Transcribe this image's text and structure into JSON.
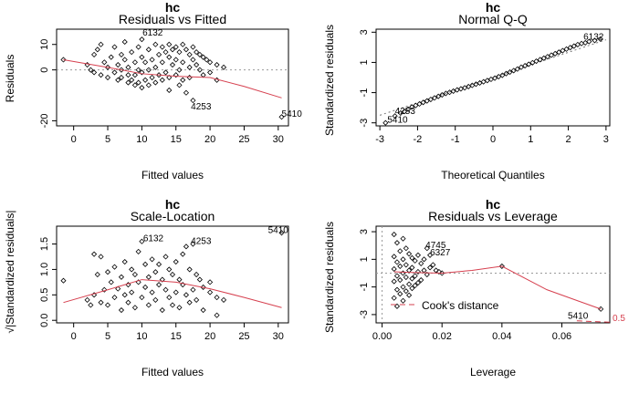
{
  "chart_data": [
    {
      "type": "scatter",
      "panel": "rvf",
      "model_label": "hc",
      "title": "Residuals vs Fitted",
      "xlabel": "Fitted values",
      "ylabel": "Residuals",
      "xlim": [
        -2.5,
        31.5
      ],
      "ylim": [
        -22,
        16
      ],
      "xticks": [
        "0",
        "5",
        "10",
        "15",
        "20",
        "25",
        "30"
      ],
      "yticks": [
        "-20",
        "0",
        "10"
      ],
      "reference_y": 0,
      "smooth": [
        [
          -1.5,
          4
        ],
        [
          5,
          1
        ],
        [
          10,
          -1.5
        ],
        [
          15,
          -2.5
        ],
        [
          20,
          -3
        ],
        [
          25,
          -6.5
        ],
        [
          30.5,
          -11
        ]
      ],
      "annotations": [
        {
          "text": "6132",
          "x": 10.1,
          "y": 13.5
        },
        {
          "text": "4253",
          "x": 17.2,
          "y": -15.5
        },
        {
          "text": "5410",
          "x": 30.5,
          "y": -18.5
        }
      ],
      "points": [
        [
          -1.5,
          4
        ],
        [
          2,
          2
        ],
        [
          2.5,
          0
        ],
        [
          3,
          6
        ],
        [
          3,
          -1
        ],
        [
          3.5,
          8
        ],
        [
          4,
          10
        ],
        [
          4,
          -2
        ],
        [
          4.5,
          3
        ],
        [
          5,
          1
        ],
        [
          5,
          -3
        ],
        [
          5.5,
          5
        ],
        [
          6,
          9
        ],
        [
          6,
          -1
        ],
        [
          6.5,
          2
        ],
        [
          6.5,
          -4
        ],
        [
          7,
          6
        ],
        [
          7,
          0
        ],
        [
          7,
          -3
        ],
        [
          7.5,
          11
        ],
        [
          7.5,
          4
        ],
        [
          8,
          -2
        ],
        [
          8,
          1
        ],
        [
          8,
          -5
        ],
        [
          8.5,
          7
        ],
        [
          8.5,
          -4
        ],
        [
          9,
          3
        ],
        [
          9,
          -2
        ],
        [
          9,
          -6
        ],
        [
          9.5,
          9
        ],
        [
          9.5,
          0
        ],
        [
          9.5,
          -5
        ],
        [
          10,
          12
        ],
        [
          10,
          5
        ],
        [
          10,
          -1
        ],
        [
          10,
          -7
        ],
        [
          10.5,
          3
        ],
        [
          10.5,
          -4
        ],
        [
          11,
          8
        ],
        [
          11,
          0
        ],
        [
          11,
          -6
        ],
        [
          11.5,
          4
        ],
        [
          11.5,
          -3
        ],
        [
          12,
          10
        ],
        [
          12,
          1
        ],
        [
          12,
          -5
        ],
        [
          12.5,
          6
        ],
        [
          12.5,
          -2
        ],
        [
          13,
          9
        ],
        [
          13,
          3
        ],
        [
          13,
          -4
        ],
        [
          13.5,
          7
        ],
        [
          13.5,
          -1
        ],
        [
          14,
          10
        ],
        [
          14,
          5
        ],
        [
          14,
          -3
        ],
        [
          14,
          -8
        ],
        [
          14.5,
          8
        ],
        [
          14.5,
          2
        ],
        [
          15,
          9
        ],
        [
          15,
          4
        ],
        [
          15,
          -2
        ],
        [
          15.5,
          7
        ],
        [
          15.5,
          0
        ],
        [
          15.5,
          -6
        ],
        [
          16,
          10
        ],
        [
          16,
          3
        ],
        [
          16,
          -4
        ],
        [
          16.5,
          8
        ],
        [
          16.5,
          -9
        ],
        [
          17,
          6
        ],
        [
          17,
          1
        ],
        [
          17,
          -3
        ],
        [
          17.5,
          9
        ],
        [
          17.5,
          4
        ],
        [
          17.5,
          -12
        ],
        [
          18,
          7
        ],
        [
          18,
          2
        ],
        [
          18.5,
          6
        ],
        [
          18.5,
          0
        ],
        [
          19,
          5
        ],
        [
          19,
          -2
        ],
        [
          19.5,
          4
        ],
        [
          20,
          3
        ],
        [
          20,
          -1
        ],
        [
          21,
          2
        ],
        [
          21,
          -4
        ],
        [
          22,
          1
        ],
        [
          30.5,
          -18.5
        ]
      ]
    },
    {
      "type": "scatter",
      "panel": "qq",
      "model_label": "hc",
      "title": "Normal Q-Q",
      "xlabel": "Theoretical Quantiles",
      "ylabel": "Standardized residuals",
      "xlim": [
        -3.1,
        3.1
      ],
      "ylim": [
        -3.2,
        3.2
      ],
      "xticks": [
        "-3",
        "-2",
        "-1",
        "0",
        "1",
        "2",
        "3"
      ],
      "yticks": [
        "-3",
        "-1",
        "1",
        "3"
      ],
      "reference_line": [
        [
          -3,
          -2.5
        ],
        [
          3,
          2.5
        ]
      ],
      "annotations": [
        {
          "text": "6132",
          "x": 2.4,
          "y": 2.5
        },
        {
          "text": "4253",
          "x": -2.6,
          "y": -2.4
        },
        {
          "text": "5410",
          "x": -2.8,
          "y": -3
        }
      ],
      "points": [
        [
          -2.85,
          -3.0
        ],
        [
          -2.6,
          -2.55
        ],
        [
          -2.45,
          -2.35
        ],
        [
          -2.35,
          -2.25
        ],
        [
          -2.25,
          -2.1
        ],
        [
          -2.15,
          -1.95
        ],
        [
          -2.05,
          -1.85
        ],
        [
          -1.95,
          -1.75
        ],
        [
          -1.85,
          -1.65
        ],
        [
          -1.75,
          -1.55
        ],
        [
          -1.65,
          -1.45
        ],
        [
          -1.55,
          -1.35
        ],
        [
          -1.45,
          -1.25
        ],
        [
          -1.35,
          -1.15
        ],
        [
          -1.25,
          -1.05
        ],
        [
          -1.15,
          -0.98
        ],
        [
          -1.05,
          -0.9
        ],
        [
          -0.95,
          -0.82
        ],
        [
          -0.85,
          -0.75
        ],
        [
          -0.75,
          -0.68
        ],
        [
          -0.65,
          -0.6
        ],
        [
          -0.55,
          -0.52
        ],
        [
          -0.45,
          -0.44
        ],
        [
          -0.35,
          -0.36
        ],
        [
          -0.25,
          -0.28
        ],
        [
          -0.15,
          -0.2
        ],
        [
          -0.05,
          -0.12
        ],
        [
          0.05,
          -0.04
        ],
        [
          0.15,
          0.06
        ],
        [
          0.25,
          0.15
        ],
        [
          0.35,
          0.26
        ],
        [
          0.45,
          0.36
        ],
        [
          0.55,
          0.46
        ],
        [
          0.65,
          0.56
        ],
        [
          0.75,
          0.68
        ],
        [
          0.85,
          0.78
        ],
        [
          0.95,
          0.88
        ],
        [
          1.05,
          0.98
        ],
        [
          1.15,
          1.08
        ],
        [
          1.25,
          1.18
        ],
        [
          1.35,
          1.28
        ],
        [
          1.45,
          1.38
        ],
        [
          1.55,
          1.48
        ],
        [
          1.65,
          1.58
        ],
        [
          1.75,
          1.68
        ],
        [
          1.85,
          1.78
        ],
        [
          1.95,
          1.88
        ],
        [
          2.05,
          1.98
        ],
        [
          2.15,
          2.08
        ],
        [
          2.25,
          2.18
        ],
        [
          2.35,
          2.25
        ],
        [
          2.45,
          2.3
        ],
        [
          2.55,
          2.38
        ],
        [
          2.7,
          2.45
        ],
        [
          2.85,
          2.55
        ]
      ]
    },
    {
      "type": "scatter",
      "panel": "scale",
      "model_label": "hc",
      "title": "Scale-Location",
      "xlabel": "Fitted values",
      "ylabel": "√|Standardized residuals|",
      "xlim": [
        -2.5,
        31.5
      ],
      "ylim": [
        -0.05,
        1.85
      ],
      "xticks": [
        "0",
        "5",
        "10",
        "15",
        "20",
        "25",
        "30"
      ],
      "yticks": [
        "0.0",
        "0.5",
        "1.0",
        "1.5"
      ],
      "smooth": [
        [
          -1.5,
          0.35
        ],
        [
          5,
          0.6
        ],
        [
          10,
          0.8
        ],
        [
          15,
          0.75
        ],
        [
          20,
          0.62
        ],
        [
          25,
          0.45
        ],
        [
          30.5,
          0.25
        ]
      ],
      "annotations": [
        {
          "text": "6132",
          "x": 10.2,
          "y": 1.55
        },
        {
          "text": "4253",
          "x": 17.2,
          "y": 1.5
        },
        {
          "text": "5410",
          "x": 28.5,
          "y": 1.72
        }
      ],
      "points": [
        [
          -1.5,
          0.78
        ],
        [
          2,
          0.4
        ],
        [
          2.5,
          0.3
        ],
        [
          3,
          0.5
        ],
        [
          3,
          1.3
        ],
        [
          3.5,
          0.9
        ],
        [
          4,
          0.35
        ],
        [
          4,
          1.25
        ],
        [
          4.5,
          0.6
        ],
        [
          5,
          0.3
        ],
        [
          5,
          0.95
        ],
        [
          5.5,
          0.75
        ],
        [
          6,
          0.45
        ],
        [
          6,
          1.05
        ],
        [
          6.5,
          0.62
        ],
        [
          7,
          0.2
        ],
        [
          7,
          0.85
        ],
        [
          7.5,
          1.15
        ],
        [
          7.5,
          0.5
        ],
        [
          8,
          0.7
        ],
        [
          8,
          0.35
        ],
        [
          8.5,
          1.0
        ],
        [
          8.5,
          0.55
        ],
        [
          9,
          0.9
        ],
        [
          9,
          0.25
        ],
        [
          9.5,
          1.35
        ],
        [
          9.5,
          0.75
        ],
        [
          10,
          1.55
        ],
        [
          10,
          0.45
        ],
        [
          10.5,
          1.1
        ],
        [
          10.5,
          0.65
        ],
        [
          11,
          0.85
        ],
        [
          11,
          0.3
        ],
        [
          11.5,
          1.2
        ],
        [
          11.5,
          0.55
        ],
        [
          12,
          0.95
        ],
        [
          12,
          0.4
        ],
        [
          12.5,
          1.1
        ],
        [
          12.5,
          0.7
        ],
        [
          13,
          0.8
        ],
        [
          13,
          0.2
        ],
        [
          13.5,
          1.25
        ],
        [
          13.5,
          0.6
        ],
        [
          14,
          1.0
        ],
        [
          14,
          0.45
        ],
        [
          14.5,
          0.9
        ],
        [
          14.5,
          0.3
        ],
        [
          15,
          1.15
        ],
        [
          15,
          0.55
        ],
        [
          15.5,
          0.8
        ],
        [
          15.5,
          0.25
        ],
        [
          16,
          1.3
        ],
        [
          16,
          0.7
        ],
        [
          16.5,
          1.45
        ],
        [
          16.5,
          0.5
        ],
        [
          17,
          1.0
        ],
        [
          17,
          0.35
        ],
        [
          17.5,
          1.5
        ],
        [
          17.5,
          0.6
        ],
        [
          18,
          0.9
        ],
        [
          18,
          0.4
        ],
        [
          18.5,
          0.8
        ],
        [
          19,
          0.65
        ],
        [
          19,
          0.2
        ],
        [
          20,
          0.55
        ],
        [
          20,
          0.75
        ],
        [
          21,
          0.45
        ],
        [
          21,
          0.1
        ],
        [
          22,
          0.4
        ],
        [
          30.5,
          1.72
        ]
      ]
    },
    {
      "type": "scatter",
      "panel": "leverage",
      "model_label": "hc",
      "title": "Residuals vs Leverage",
      "xlabel": "Leverage",
      "ylabel": "Standardized residuals",
      "xlim": [
        -0.002,
        0.076
      ],
      "ylim": [
        -3.6,
        3.4
      ],
      "xticks": [
        "0.00",
        "0.02",
        "0.04",
        "0.06"
      ],
      "yticks": [
        "-3",
        "-1",
        "1",
        "3"
      ],
      "reference_y": 0,
      "cooks_label": "Cook's distance",
      "cooks_contour_label": "0.5",
      "smooth": [
        [
          0.004,
          0.1
        ],
        [
          0.01,
          0.05
        ],
        [
          0.02,
          0.0
        ],
        [
          0.03,
          0.2
        ],
        [
          0.04,
          0.5
        ],
        [
          0.055,
          -1.2
        ],
        [
          0.073,
          -2.6
        ]
      ],
      "annotations": [
        {
          "text": "4745",
          "x": 0.0145,
          "y": 1.8
        },
        {
          "text": "6327",
          "x": 0.016,
          "y": 1.3
        },
        {
          "text": "5410",
          "x": 0.062,
          "y": -3.3
        }
      ],
      "points": [
        [
          0.004,
          2.8
        ],
        [
          0.004,
          1.2
        ],
        [
          0.004,
          0.3
        ],
        [
          0.004,
          -0.6
        ],
        [
          0.004,
          -1.8
        ],
        [
          0.005,
          2.2
        ],
        [
          0.005,
          0.8
        ],
        [
          0.005,
          -0.2
        ],
        [
          0.005,
          -1.2
        ],
        [
          0.005,
          -2.4
        ],
        [
          0.006,
          1.6
        ],
        [
          0.006,
          0.5
        ],
        [
          0.006,
          -0.5
        ],
        [
          0.006,
          -1.5
        ],
        [
          0.007,
          2.5
        ],
        [
          0.007,
          1.0
        ],
        [
          0.007,
          0.0
        ],
        [
          0.007,
          -1.0
        ],
        [
          0.007,
          -2.0
        ],
        [
          0.008,
          1.8
        ],
        [
          0.008,
          0.6
        ],
        [
          0.008,
          -0.3
        ],
        [
          0.008,
          -1.3
        ],
        [
          0.009,
          1.4
        ],
        [
          0.009,
          0.2
        ],
        [
          0.009,
          -0.8
        ],
        [
          0.009,
          -1.6
        ],
        [
          0.01,
          1.1
        ],
        [
          0.01,
          0.4
        ],
        [
          0.01,
          -0.4
        ],
        [
          0.01,
          -1.1
        ],
        [
          0.011,
          0.9
        ],
        [
          0.011,
          -0.2
        ],
        [
          0.011,
          -0.9
        ],
        [
          0.012,
          1.3
        ],
        [
          0.012,
          0.1
        ],
        [
          0.012,
          -0.7
        ],
        [
          0.013,
          0.7
        ],
        [
          0.013,
          -0.5
        ],
        [
          0.014,
          1.0
        ],
        [
          0.014,
          0.2
        ],
        [
          0.015,
          1.8
        ],
        [
          0.015,
          -0.1
        ],
        [
          0.016,
          1.3
        ],
        [
          0.016,
          0.4
        ],
        [
          0.017,
          0.6
        ],
        [
          0.018,
          0.2
        ],
        [
          0.019,
          0.1
        ],
        [
          0.02,
          0.0
        ],
        [
          0.04,
          0.5
        ],
        [
          0.073,
          -2.6
        ]
      ]
    }
  ]
}
